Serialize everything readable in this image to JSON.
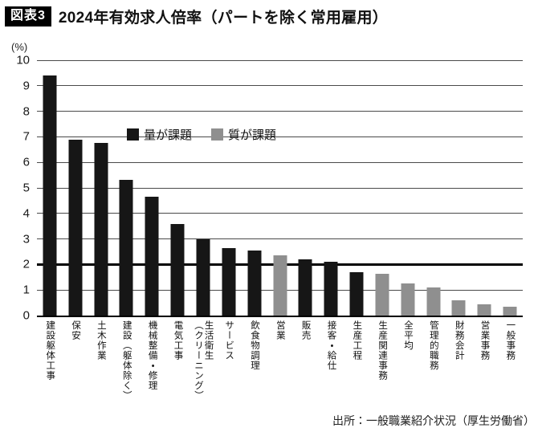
{
  "chart_data": {
    "type": "bar",
    "badge": "図表3",
    "title": "2024年有効求人倍率（パートを除く常用雇用）",
    "ylabel": "(%)",
    "ylim": [
      0,
      10
    ],
    "ytick_step": 1,
    "reference_line_y": 2,
    "grid": true,
    "legend_position": "top-left-inside",
    "legend": [
      {
        "key": "quantity",
        "label": "量が課題",
        "color": "#161616"
      },
      {
        "key": "quality",
        "label": "質が課題",
        "color": "#8f8f8f"
      }
    ],
    "categories": [
      "建設躯体工事",
      "保安",
      "土木作業",
      "建設（躯体除く）",
      "機械整備・修理",
      "電気工事",
      "生活衛生\n（クリーニング）",
      "サービス",
      "飲食物調理",
      "営業",
      "販売",
      "接客・給仕",
      "生産工程",
      "生産関連事務",
      "全平均",
      "管理的職務",
      "財務会計",
      "営業事務",
      "一般事務"
    ],
    "values": [
      9.4,
      6.9,
      6.75,
      5.3,
      4.65,
      3.6,
      3.0,
      2.65,
      2.55,
      2.35,
      2.2,
      2.1,
      1.7,
      1.65,
      1.25,
      1.1,
      0.6,
      0.45,
      0.35
    ],
    "issue_type": [
      "quantity",
      "quantity",
      "quantity",
      "quantity",
      "quantity",
      "quantity",
      "quantity",
      "quantity",
      "quantity",
      "quality",
      "quantity",
      "quantity",
      "quantity",
      "quality",
      "quality",
      "quality",
      "quality",
      "quality",
      "quality"
    ],
    "source": "出所：一般職業紹介状況（厚生労働省）"
  }
}
